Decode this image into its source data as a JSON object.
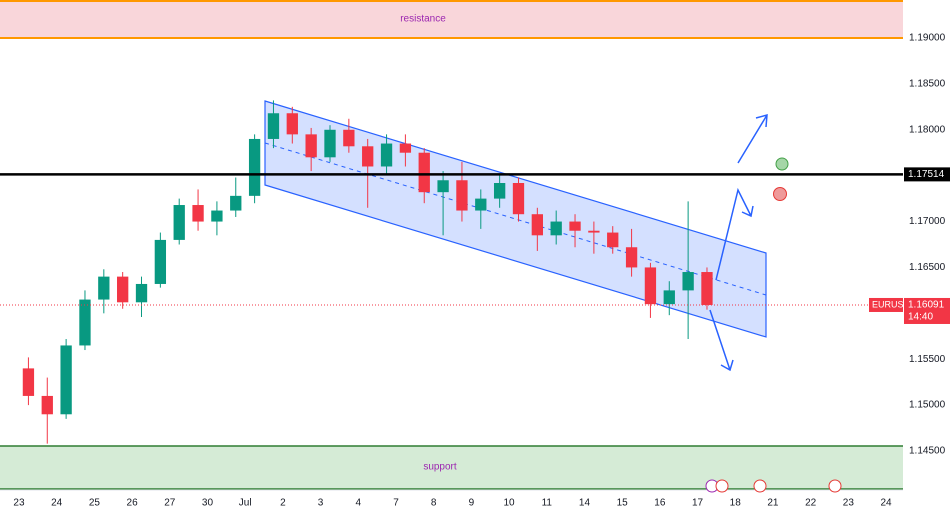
{
  "chart_data": {
    "type": "candlestick",
    "symbol": "EURUSD",
    "countdown": "14:40",
    "last_price": {
      "value": 1.16091,
      "label": "1.16091"
    },
    "key_level": {
      "value": 1.17514,
      "label": "1.17514"
    },
    "resistance_label": "resistance",
    "support_label": "support",
    "up_color": "#089981",
    "down_color": "#f23645",
    "ylim": [
      1.14075,
      1.19414
    ],
    "yticks": [
      {
        "value": 1.19,
        "label": "1.19000"
      },
      {
        "value": 1.185,
        "label": "1.18500"
      },
      {
        "value": 1.18,
        "label": "1.18000"
      },
      {
        "value": 1.17,
        "label": "1.17000"
      },
      {
        "value": 1.165,
        "label": "1.16500"
      },
      {
        "value": 1.155,
        "label": "1.15500"
      },
      {
        "value": 1.15,
        "label": "1.15000"
      },
      {
        "value": 1.145,
        "label": "1.14500"
      }
    ],
    "xlim": [
      -0.504,
      23.45
    ],
    "xticks": [
      {
        "value": 0,
        "label": "23"
      },
      {
        "value": 1,
        "label": "24"
      },
      {
        "value": 2,
        "label": "25"
      },
      {
        "value": 3,
        "label": "26"
      },
      {
        "value": 4,
        "label": "27"
      },
      {
        "value": 5,
        "label": "30"
      },
      {
        "value": 6,
        "label": "Jul"
      },
      {
        "value": 7,
        "label": "2"
      },
      {
        "value": 8,
        "label": "3"
      },
      {
        "value": 9,
        "label": "4"
      },
      {
        "value": 10,
        "label": "7"
      },
      {
        "value": 11,
        "label": "8"
      },
      {
        "value": 12,
        "label": "9"
      },
      {
        "value": 13,
        "label": "10"
      },
      {
        "value": 14,
        "label": "11"
      },
      {
        "value": 15,
        "label": "14"
      },
      {
        "value": 16,
        "label": "15"
      },
      {
        "value": 17,
        "label": "16"
      },
      {
        "value": 18,
        "label": "17"
      },
      {
        "value": 19,
        "label": "18"
      },
      {
        "value": 20,
        "label": "21"
      },
      {
        "value": 21,
        "label": "22"
      },
      {
        "value": 22,
        "label": "23"
      },
      {
        "value": 23,
        "label": "24"
      }
    ],
    "x": [
      0.25,
      0.75,
      1.25,
      1.75,
      2.25,
      2.75,
      3.25,
      3.75,
      4.25,
      4.75,
      5.25,
      5.75,
      6.25,
      6.75,
      7.25,
      7.75,
      8.25,
      8.75,
      9.25,
      9.75,
      10.25,
      10.75,
      11.25,
      11.75,
      12.25,
      12.75,
      13.25,
      13.75,
      14.25,
      14.75,
      15.25,
      15.75,
      16.25,
      16.75,
      17.25,
      17.75,
      18.25
    ],
    "open": [
      1.154,
      1.151,
      1.149,
      1.1565,
      1.1615,
      1.164,
      1.1612,
      1.1632,
      1.168,
      1.1718,
      1.17,
      1.1712,
      1.1728,
      1.179,
      1.1818,
      1.1795,
      1.177,
      1.18,
      1.1782,
      1.176,
      1.1785,
      1.1775,
      1.1732,
      1.1745,
      1.1712,
      1.1725,
      1.1742,
      1.1708,
      1.1685,
      1.17,
      1.169,
      1.1688,
      1.1672,
      1.165,
      1.161,
      1.1625,
      1.1645
    ],
    "high": [
      1.1552,
      1.153,
      1.1572,
      1.1625,
      1.1648,
      1.1645,
      1.164,
      1.1688,
      1.1725,
      1.1735,
      1.1722,
      1.1748,
      1.1795,
      1.1832,
      1.1825,
      1.1802,
      1.1805,
      1.1812,
      1.179,
      1.1795,
      1.1795,
      1.178,
      1.1755,
      1.1765,
      1.1735,
      1.1752,
      1.1748,
      1.1715,
      1.1712,
      1.1708,
      1.17,
      1.1695,
      1.1692,
      1.1655,
      1.1635,
      1.1722,
      1.165
    ],
    "low": [
      1.15,
      1.1458,
      1.1485,
      1.156,
      1.16,
      1.1605,
      1.1596,
      1.1628,
      1.1675,
      1.169,
      1.1685,
      1.1705,
      1.172,
      1.178,
      1.1785,
      1.1755,
      1.1765,
      1.1775,
      1.1715,
      1.1752,
      1.176,
      1.172,
      1.1685,
      1.17,
      1.1692,
      1.1715,
      1.17,
      1.1668,
      1.1675,
      1.1672,
      1.1665,
      1.1665,
      1.164,
      1.1595,
      1.1598,
      1.1572,
      1.1604
    ],
    "close": [
      1.151,
      1.149,
      1.1565,
      1.1615,
      1.164,
      1.1612,
      1.1632,
      1.168,
      1.1718,
      1.17,
      1.1712,
      1.1728,
      1.179,
      1.1818,
      1.1795,
      1.177,
      1.18,
      1.1782,
      1.176,
      1.1785,
      1.1775,
      1.1732,
      1.1745,
      1.1712,
      1.1725,
      1.1742,
      1.1708,
      1.1685,
      1.17,
      1.169,
      1.1688,
      1.1672,
      1.165,
      1.161,
      1.1625,
      1.1645,
      1.16091
    ]
  }
}
